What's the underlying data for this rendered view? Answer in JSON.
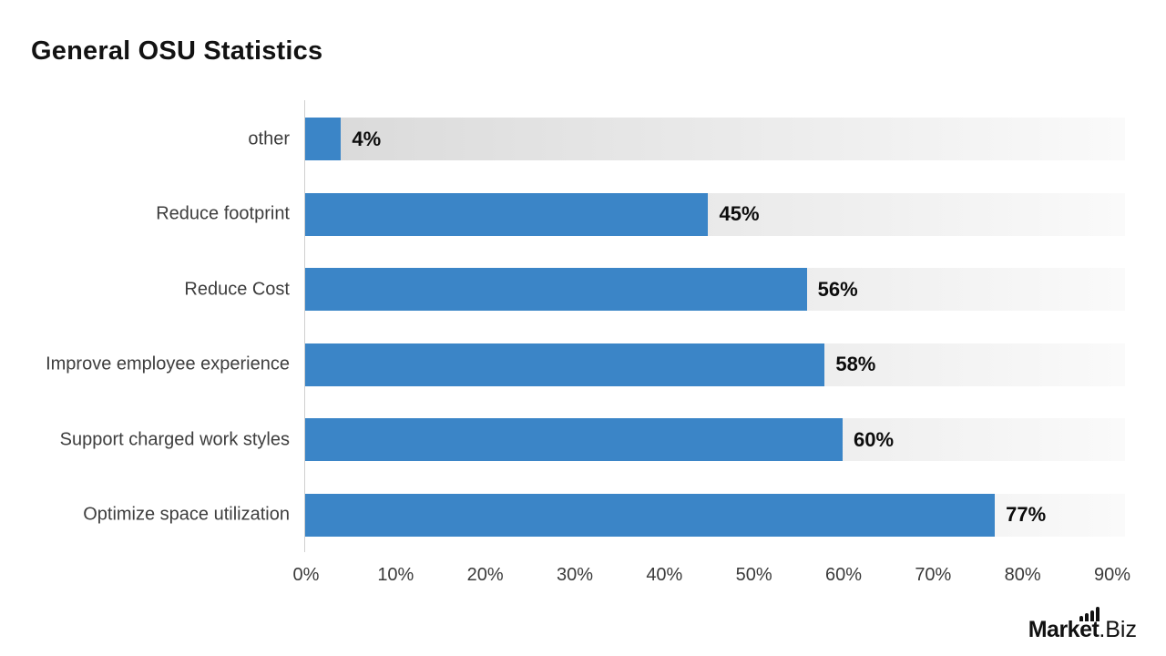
{
  "title": "General OSU Statistics",
  "chart_data": {
    "type": "bar",
    "orientation": "horizontal",
    "title": "General OSU Statistics",
    "categories": [
      "other",
      "Reduce footprint",
      "Reduce Cost",
      "Improve employee experience",
      "Support charged work styles",
      "Optimize space utilization"
    ],
    "values": [
      4,
      45,
      56,
      58,
      60,
      77
    ],
    "value_labels": [
      "4%",
      "45%",
      "56%",
      "58%",
      "60%",
      "77%"
    ],
    "xlabel": "",
    "ylabel": "",
    "xlim": [
      0,
      90
    ],
    "x_tick_labels": [
      "0%",
      "10%",
      "20%",
      "30%",
      "40%",
      "50%",
      "60%",
      "70%",
      "80%",
      "90%"
    ],
    "x_tick_values": [
      0,
      10,
      20,
      30,
      40,
      50,
      60,
      70,
      80,
      90
    ],
    "grid": false,
    "legend": "none",
    "bar_color": "#3b85c7",
    "track_gradient_left": "#d9d9d9",
    "track_gradient_right": "#fafafa",
    "axis_line_color": "#cfcfcf"
  },
  "branding": {
    "logo_bold": "Market",
    "logo_light": ".Biz"
  }
}
